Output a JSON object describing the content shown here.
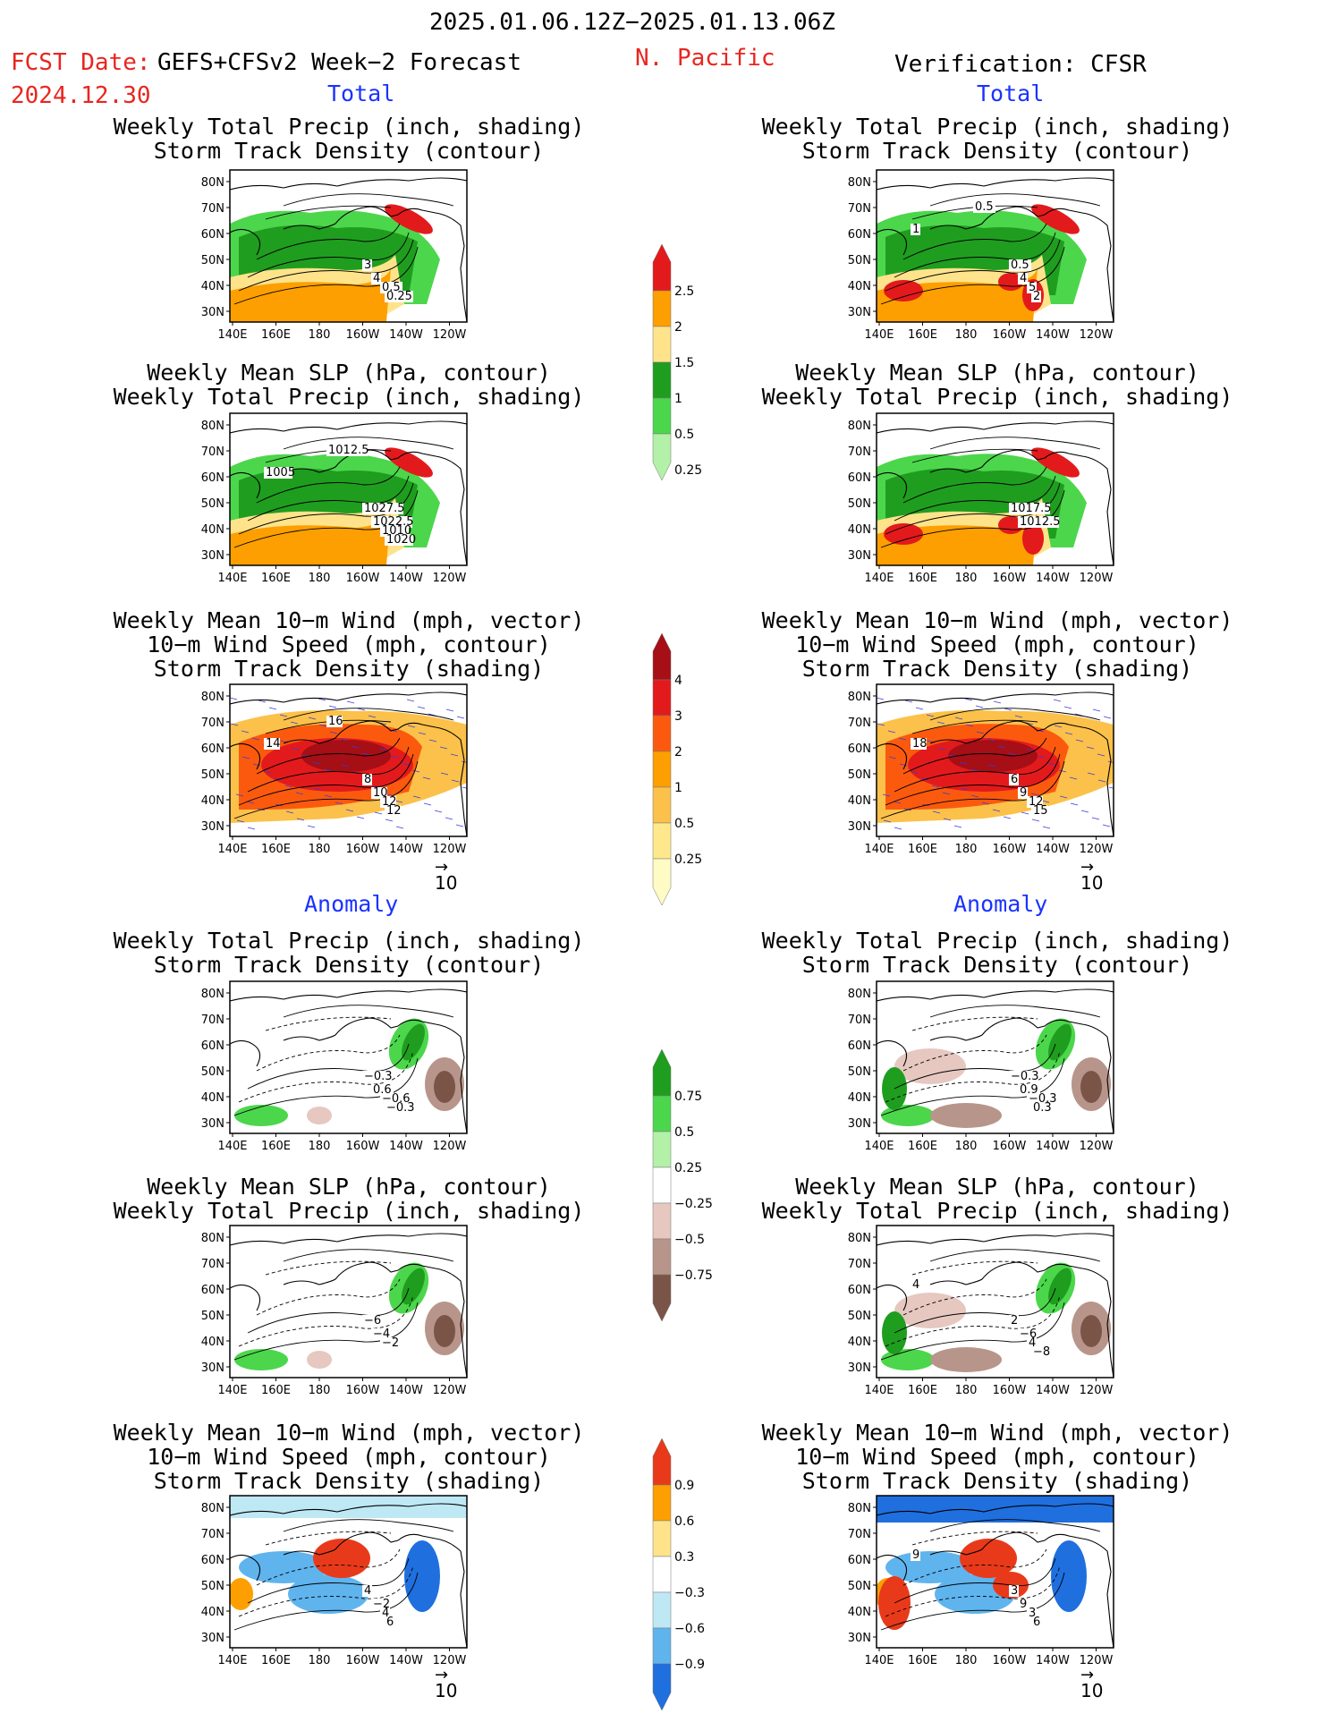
{
  "header": {
    "period": "2025.01.06.12Z−2025.01.13.06Z",
    "fcst_label": "FCST Date:",
    "fcst_model": "GEFS+CFSv2 Week−2 Forecast",
    "fcst_date": "2024.12.30",
    "region": "N. Pacific",
    "verification": "Verification: CFSR"
  },
  "sections": {
    "total": "Total",
    "anomaly": "Anomaly"
  },
  "axes": {
    "lat_labels": [
      "80N",
      "70N",
      "60N",
      "50N",
      "40N",
      "30N"
    ],
    "lon_labels": [
      "140E",
      "160E",
      "180",
      "160W",
      "140W",
      "120W"
    ]
  },
  "titles": {
    "precip_storm": [
      "Weekly Total Precip (inch, shading)",
      "Storm Track Density (contour)"
    ],
    "slp_precip": [
      "Weekly Mean SLP (hPa, contour)",
      "Weekly Total Precip (inch, shading)"
    ],
    "wind_storm": [
      "Weekly Mean 10−m Wind (mph, vector)",
      "10−m Wind Speed (mph, contour)",
      "Storm Track Density (shading)"
    ]
  },
  "vector_ref": "10",
  "colorbars": {
    "total_precip": {
      "labels": [
        "2.5",
        "2",
        "1.5",
        "1",
        "0.5",
        "0.25"
      ],
      "colors": [
        "#e31a1c",
        "#fd9f00",
        "#fee38b",
        "#1f9d1f",
        "#4cd64c",
        "#b3f0a8"
      ]
    },
    "total_storm": {
      "labels": [
        "4",
        "3",
        "2",
        "1",
        "0.5",
        "0.25"
      ],
      "colors": [
        "#a50f15",
        "#e31a1c",
        "#fb5a0e",
        "#fd9f00",
        "#fcc14a",
        "#fee88b",
        "#fffbc4"
      ]
    },
    "anom_precip": {
      "labels": [
        "0.75",
        "0.5",
        "0.25",
        "−0.25",
        "−0.5",
        "−0.75"
      ],
      "colors": [
        "#1f9d1f",
        "#4cd64c",
        "#b3f0a8",
        "#ffffff",
        "#e6c8c0",
        "#b8958a",
        "#7b5448"
      ]
    },
    "anom_storm": {
      "labels": [
        "0.9",
        "0.6",
        "0.3",
        "−0.3",
        "−0.6",
        "−0.9"
      ],
      "colors": [
        "#e83a1a",
        "#fd9f00",
        "#fee38b",
        "#ffffff",
        "#bfe8f5",
        "#5fb4ee",
        "#1f6fdf"
      ]
    }
  },
  "panels": {
    "fc_total_precip": [
      "3",
      "4",
      "0.5",
      "0.25"
    ],
    "ob_total_precip": [
      "0.5",
      "4",
      "5",
      "2",
      "1",
      "0.5"
    ],
    "fc_total_slp": [
      "1027.5",
      "1022.5",
      "1010",
      "1020",
      "1005",
      "1012.5"
    ],
    "ob_total_slp": [
      "1017.5",
      "1012.5"
    ],
    "fc_total_wind": [
      "8",
      "10",
      "12",
      "12",
      "14",
      "16"
    ],
    "ob_total_wind": [
      "6",
      "9",
      "12",
      "15",
      "18"
    ],
    "fc_anom_precip": [
      "−0.3",
      "0.6",
      "−0.6",
      "−0.3"
    ],
    "ob_anom_precip": [
      "−0.3",
      "0.9",
      "−0.3",
      "0.3"
    ],
    "fc_anom_slp": [
      "−6",
      "−4",
      "−2"
    ],
    "ob_anom_slp": [
      "2",
      "−6",
      "4",
      "−8",
      "4"
    ],
    "fc_anom_wind": [
      "4",
      "−2",
      "4",
      "6"
    ],
    "ob_anom_wind": [
      "3",
      "9",
      "3",
      "6",
      "9"
    ]
  }
}
